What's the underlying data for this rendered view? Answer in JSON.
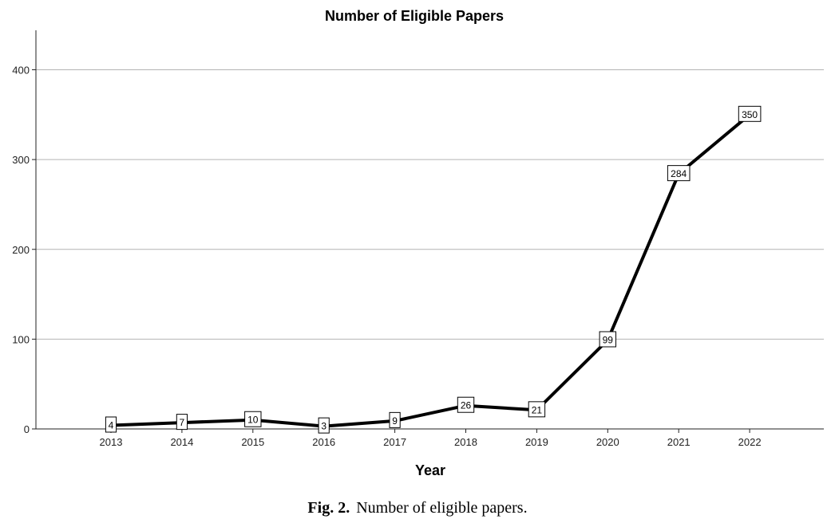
{
  "chart_data": {
    "type": "line",
    "title": "Number of Eligible Papers",
    "xlabel": "Year",
    "ylabel": "",
    "categories": [
      "2013",
      "2014",
      "2015",
      "2016",
      "2017",
      "2018",
      "2019",
      "2020",
      "2021",
      "2022"
    ],
    "series": [
      {
        "values": [
          4,
          7,
          10,
          3,
          9,
          26,
          21,
          99,
          284,
          350
        ]
      }
    ],
    "data_labels": [
      "4",
      "7",
      "10",
      "3",
      "9",
      "26",
      "21",
      "99",
      "284",
      "350"
    ],
    "y_ticks": [
      0,
      100,
      200,
      300,
      400
    ],
    "y_tick_labels": [
      "0",
      "100",
      "200",
      "300",
      "400"
    ],
    "ylim": [
      0,
      400
    ],
    "grid": "horizontal",
    "legend": "none",
    "line_color": "#000000",
    "grid_color": "#b4b4b4"
  },
  "caption": {
    "label": "Fig. 2.",
    "text": "Number of eligible papers."
  }
}
